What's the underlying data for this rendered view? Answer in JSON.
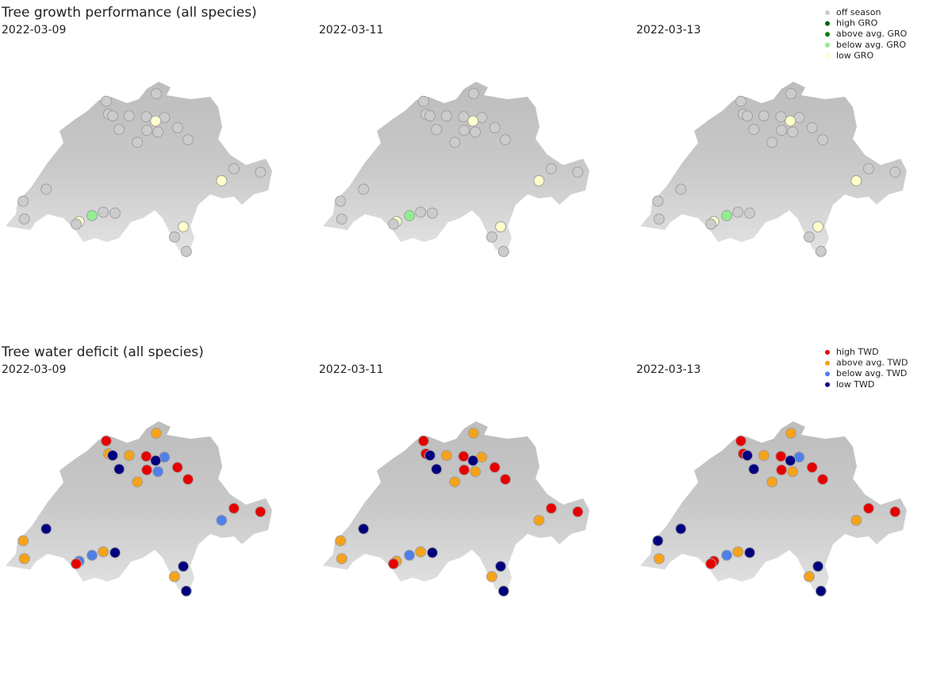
{
  "chart_data": [
    {
      "type": "map",
      "title": "Tree growth performance (all species)",
      "dates": [
        "2022-03-09",
        "2022-03-11",
        "2022-03-13"
      ],
      "legend": [
        {
          "name": "off season",
          "color": "#cccccc"
        },
        {
          "name": "high GRO",
          "color": "#006400"
        },
        {
          "name": "above avg. GRO",
          "color": "#008000"
        },
        {
          "name": "below avg. GRO",
          "color": "#90ee90"
        },
        {
          "name": "low GRO",
          "color": "#ffffcc"
        }
      ],
      "sites": {
        "lon": [
          7.67,
          7.71,
          7.78,
          8.06,
          7.89,
          8.35,
          8.52,
          8.66,
          8.51,
          8.88,
          8.36,
          8.55,
          8.2,
          9.06,
          9.84,
          10.29,
          9.63,
          6.65,
          6.26,
          6.28,
          7.43,
          7.62,
          7.82,
          7.21,
          7.16,
          8.98,
          8.83,
          9.03
        ],
        "lat": [
          47.58,
          47.43,
          47.41,
          47.41,
          47.25,
          47.4,
          47.67,
          47.39,
          47.35,
          47.27,
          47.24,
          47.22,
          47.1,
          47.13,
          46.79,
          46.75,
          46.65,
          46.55,
          46.41,
          46.2,
          46.24,
          46.28,
          46.27,
          46.17,
          46.14,
          46.11,
          45.99,
          45.82
        ]
      },
      "status": [
        [
          "off season",
          "off season",
          "off season",
          "off season",
          "off season",
          "off season",
          "off season",
          "off season",
          "low GRO",
          "off season",
          "off season",
          "off season",
          "off season",
          "off season",
          "off season",
          "off season",
          "low GRO",
          "off season",
          "off season",
          "off season",
          "below avg. GRO",
          "off season",
          "off season",
          "low GRO",
          "off season",
          "low GRO",
          "off season",
          "off season"
        ],
        [
          "off season",
          "off season",
          "off season",
          "off season",
          "off season",
          "off season",
          "off season",
          "off season",
          "low GRO",
          "off season",
          "off season",
          "off season",
          "off season",
          "off season",
          "off season",
          "off season",
          "low GRO",
          "off season",
          "off season",
          "off season",
          "below avg. GRO",
          "off season",
          "off season",
          "low GRO",
          "off season",
          "low GRO",
          "off season",
          "off season"
        ],
        [
          "off season",
          "off season",
          "off season",
          "off season",
          "off season",
          "off season",
          "off season",
          "off season",
          "low GRO",
          "off season",
          "off season",
          "off season",
          "off season",
          "off season",
          "off season",
          "off season",
          "low GRO",
          "off season",
          "off season",
          "off season",
          "below avg. GRO",
          "off season",
          "off season",
          "low GRO",
          "off season",
          "low GRO",
          "off season",
          "off season"
        ]
      ]
    },
    {
      "type": "map",
      "title": "Tree water deficit (all species)",
      "dates": [
        "2022-03-09",
        "2022-03-11",
        "2022-03-13"
      ],
      "legend": [
        {
          "name": "high TWD",
          "color": "#e60000"
        },
        {
          "name": "above avg. TWD",
          "color": "#f5a31a"
        },
        {
          "name": "below avg. TWD",
          "color": "#4f7fe8"
        },
        {
          "name": "low TWD",
          "color": "#00007f"
        }
      ],
      "sites": {
        "lon": [
          7.67,
          7.71,
          7.78,
          8.06,
          7.89,
          8.35,
          8.52,
          8.66,
          8.51,
          8.88,
          8.36,
          8.55,
          8.2,
          9.06,
          9.84,
          10.29,
          9.63,
          6.65,
          6.26,
          6.28,
          7.43,
          7.62,
          7.82,
          7.21,
          7.16,
          8.98,
          8.83,
          9.03
        ],
        "lat": [
          47.58,
          47.43,
          47.41,
          47.41,
          47.25,
          47.4,
          47.67,
          47.39,
          47.35,
          47.27,
          47.24,
          47.22,
          47.1,
          47.13,
          46.79,
          46.75,
          46.65,
          46.55,
          46.41,
          46.2,
          46.24,
          46.28,
          46.27,
          46.17,
          46.14,
          46.11,
          45.99,
          45.82
        ]
      },
      "status": [
        [
          "high TWD",
          "above avg. TWD",
          "low TWD",
          "above avg. TWD",
          "low TWD",
          "high TWD",
          "above avg. TWD",
          "below avg. TWD",
          "low TWD",
          "high TWD",
          "high TWD",
          "below avg. TWD",
          "above avg. TWD",
          "high TWD",
          "high TWD",
          "high TWD",
          "below avg. TWD",
          "low TWD",
          "above avg. TWD",
          "above avg. TWD",
          "below avg. TWD",
          "above avg. TWD",
          "low TWD",
          "below avg. TWD",
          "high TWD",
          "low TWD",
          "above avg. TWD",
          "low TWD"
        ],
        [
          "high TWD",
          "high TWD",
          "low TWD",
          "above avg. TWD",
          "low TWD",
          "high TWD",
          "above avg. TWD",
          "above avg. TWD",
          "low TWD",
          "high TWD",
          "high TWD",
          "above avg. TWD",
          "above avg. TWD",
          "high TWD",
          "high TWD",
          "high TWD",
          "above avg. TWD",
          "low TWD",
          "above avg. TWD",
          "above avg. TWD",
          "below avg. TWD",
          "above avg. TWD",
          "low TWD",
          "above avg. TWD",
          "high TWD",
          "low TWD",
          "above avg. TWD",
          "low TWD"
        ],
        [
          "high TWD",
          "high TWD",
          "low TWD",
          "above avg. TWD",
          "low TWD",
          "high TWD",
          "above avg. TWD",
          "below avg. TWD",
          "low TWD",
          "high TWD",
          "high TWD",
          "above avg. TWD",
          "above avg. TWD",
          "high TWD",
          "high TWD",
          "high TWD",
          "above avg. TWD",
          "low TWD",
          "low TWD",
          "above avg. TWD",
          "below avg. TWD",
          "above avg. TWD",
          "low TWD",
          "high TWD",
          "high TWD",
          "low TWD",
          "above avg. TWD",
          "low TWD"
        ]
      ]
    }
  ]
}
